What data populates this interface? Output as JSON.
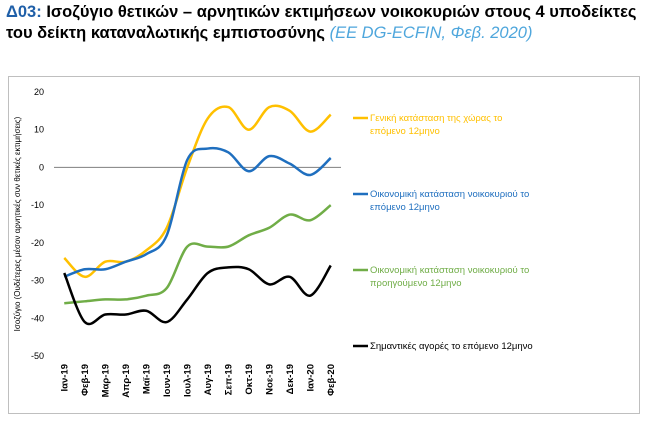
{
  "chart_data": {
    "type": "line",
    "title_code": "Δ03:",
    "title": "Ισοζύγιο θετικών – αρνητικών εκτιμήσεων νοικοκυριών στους 4 υποδείκτες του δείκτη καταναλωτικής εμπιστοσύνης",
    "subtitle": "(ΕΕ DG-ECFIN, Φεβ. 2020)",
    "y_label": "Ισοζύγιο (Ουδέτερες μέσον αρνητικές συν θετικές εκτιμήσεις)",
    "categories": [
      "Ιαν-19",
      "Φεβ-19",
      "Μαρ-19",
      "Απρ-19",
      "Μαϊ-19",
      "Ιουν-19",
      "Ιουλ-19",
      "Αυγ-19",
      "Σεπ-19",
      "Οκτ-19",
      "Νοε-19",
      "Δεκ-19",
      "Ιαν-20",
      "Φεβ-20"
    ],
    "ylim": [
      -50,
      20
    ],
    "yticks": [
      -50,
      -40,
      -30,
      -20,
      -10,
      0,
      10,
      20
    ],
    "grid": false,
    "legend": "right",
    "series": [
      {
        "name": "Γενική κατάσταση της χώρας το επόμενο 12μηνο",
        "color": "#ffc000",
        "values": [
          -24,
          -29,
          -25,
          -25,
          -22,
          -16,
          0,
          13,
          16,
          10,
          16,
          15,
          9.5,
          14
        ]
      },
      {
        "name": "Οικονομική κατάσταση νοικοκυριού το επόμενο 12μηνο",
        "color": "#1f6fbf",
        "values": [
          -29,
          -27,
          -27,
          -25,
          -23,
          -18,
          2,
          5,
          4,
          -1,
          3,
          1,
          -2,
          2.5
        ]
      },
      {
        "name": "Οικονομική κατάσταση νοικοκυριού το προηγούμενο 12μηνο",
        "color": "#70ad47",
        "values": [
          -36,
          -35.5,
          -35,
          -35,
          -34,
          -32,
          -21,
          -21,
          -21,
          -18,
          -16,
          -12.5,
          -14,
          -10
        ]
      },
      {
        "name": "Σημαντικές αγορές το επόμενο 12μηνο",
        "color": "#000000",
        "values": [
          -28,
          -41,
          -39,
          -39,
          -38,
          -41,
          -35,
          -28,
          -26.5,
          -27,
          -31,
          -29,
          -34,
          -26
        ]
      }
    ]
  }
}
